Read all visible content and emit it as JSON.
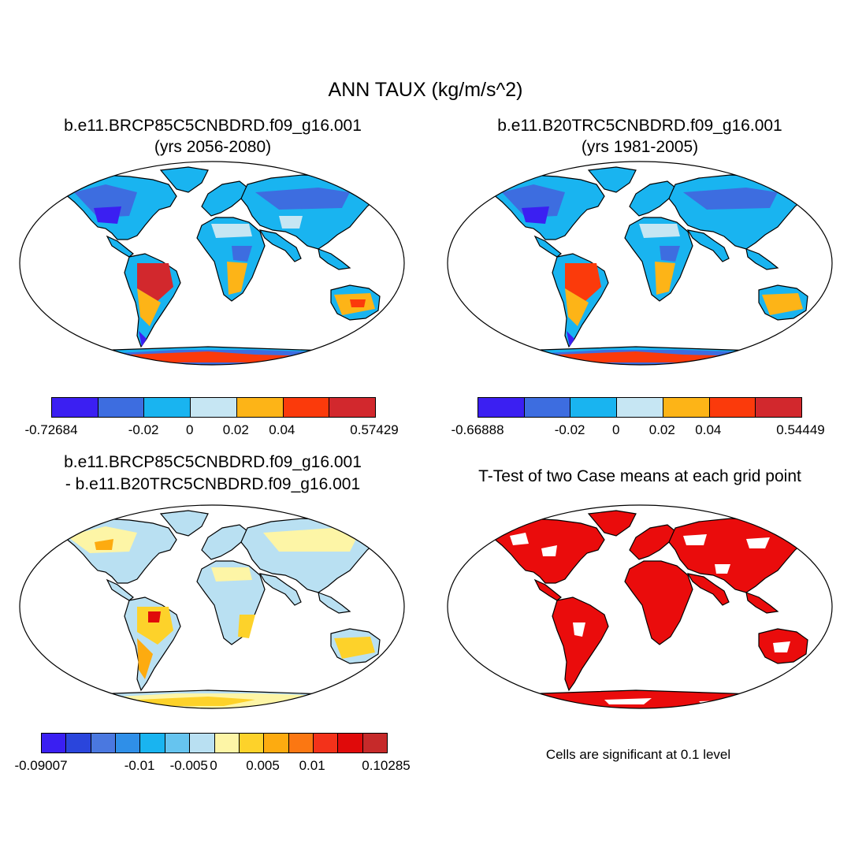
{
  "title": "ANN TAUX (kg/m/s^2)",
  "panels": {
    "top_left": {
      "line1": "b.e11.BRCP85C5CNBDRD.f09_g16.001",
      "line2": "(yrs 2056-2080)",
      "colorbar": {
        "colors": [
          "#3b1ff2",
          "#3d6de0",
          "#19b4f0",
          "#c6e6f3",
          "#fdb417",
          "#fb3a0b",
          "#d2282d"
        ],
        "labels": [
          "-0.72684",
          "-0.02",
          "0",
          "0.02",
          "0.04",
          "0.57429"
        ]
      }
    },
    "top_right": {
      "line1": "b.e11.B20TRC5CNBDRD.f09_g16.001",
      "line2": "(yrs 1981-2005)",
      "colorbar": {
        "colors": [
          "#3b1ff2",
          "#3d6de0",
          "#19b4f0",
          "#c6e6f3",
          "#fdb417",
          "#fb3a0b",
          "#d2282d"
        ],
        "labels": [
          "-0.66888",
          "-0.02",
          "0",
          "0.02",
          "0.04",
          "0.54449"
        ]
      }
    },
    "bottom_left": {
      "line1": "b.e11.BRCP85C5CNBDRD.f09_g16.001",
      "line2": "- b.e11.B20TRC5CNBDRD.f09_g16.001",
      "colorbar": {
        "colors": [
          "#3a1ff2",
          "#2a45dc",
          "#4a78e0",
          "#2f8fe8",
          "#19b4f0",
          "#66c4ef",
          "#b9e0f2",
          "#fdf5a6",
          "#fdd22a",
          "#fdab10",
          "#fb7712",
          "#f3321a",
          "#e00a0a",
          "#c62a2a"
        ],
        "labels": [
          "-0.09007",
          "-0.01",
          "-0.005",
          "0",
          "0.005",
          "0.01",
          "0.10285"
        ]
      }
    },
    "bottom_right": {
      "line1": "T-Test of two Case means at each grid point",
      "note": "Cells are significant at 0.1 level"
    }
  }
}
